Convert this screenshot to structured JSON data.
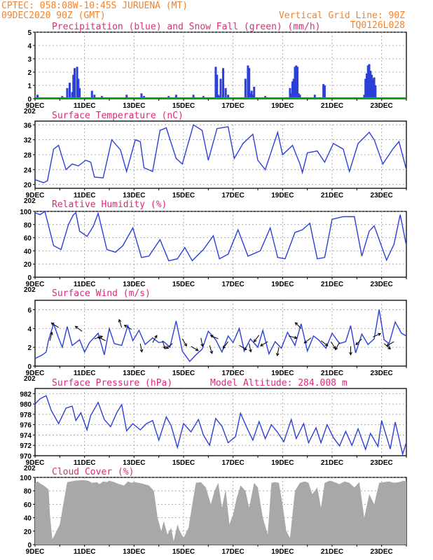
{
  "header": {
    "line1": "CPTEC:   058:08W-10:45S  JURUENA (MT)",
    "line2": "09DEC2020 90Z (GMT)",
    "grid_note": "Vertical Grid Line: 90Z",
    "code": "TQ0126L028"
  },
  "x_axis": {
    "start": "9DEC",
    "end": "24DEC",
    "tick_labels": [
      "9DEC",
      "11DEC",
      "13DEC",
      "15DEC",
      "17DEC",
      "19DEC",
      "21DEC",
      "23DEC"
    ],
    "tick_days": [
      0,
      2,
      4,
      6,
      8,
      10,
      12,
      14
    ],
    "corner_label": "202"
  },
  "colors": {
    "line": "#2b3fd9",
    "precip": "#2b3fd9",
    "snow": "#16a316",
    "cloud": "#a8a8a8",
    "header": "#f5822a",
    "title": "#e0287a"
  },
  "chart_data": [
    {
      "type": "bar",
      "id": "precip",
      "title": "Precipitation (blue) and Snow Fall (green) (mm/h)",
      "ylim": [
        0,
        5
      ],
      "yticks": [
        0,
        1,
        2,
        3,
        4,
        5
      ],
      "series": [
        {
          "name": "Precipitation",
          "x": [
            0.1,
            1.1,
            1.3,
            1.4,
            1.5,
            1.55,
            1.6,
            1.7,
            1.75,
            1.8,
            2.3,
            2.4,
            2.7,
            3.7,
            4.3,
            4.4,
            5.4,
            5.7,
            6.4,
            6.8,
            7.3,
            7.35,
            7.4,
            7.45,
            7.5,
            7.6,
            7.7,
            7.8,
            8.5,
            8.6,
            8.65,
            8.7,
            8.75,
            8.8,
            8.85,
            9.3,
            10.3,
            10.35,
            10.4,
            10.45,
            10.5,
            10.55,
            10.6,
            10.65,
            10.7,
            11.3,
            11.65,
            11.7,
            13.3,
            13.35,
            13.4,
            13.45,
            13.5,
            13.55,
            13.6,
            13.65,
            13.7,
            13.75
          ],
          "values": [
            0.3,
            0.2,
            0.8,
            1.2,
            0.5,
            1.8,
            2.3,
            2.4,
            1.5,
            0.8,
            0.6,
            0.3,
            0.2,
            0.3,
            0.4,
            0.2,
            0.2,
            0.3,
            0.3,
            0.2,
            2.4,
            1.8,
            0.3,
            0.2,
            1.5,
            2.3,
            0.8,
            0.3,
            1.5,
            2.5,
            2.3,
            0.4,
            0.6,
            0.3,
            0.9,
            0.2,
            0.8,
            0.4,
            1.3,
            1.5,
            2.4,
            2.5,
            2.4,
            0.4,
            0.3,
            0.3,
            1.1,
            1.0,
            0.3,
            1.5,
            1.9,
            2.5,
            2.6,
            2.1,
            1.8,
            1.5,
            1.6,
            1.0
          ]
        },
        {
          "name": "Snow Fall",
          "x": [
            0,
            15
          ],
          "values": [
            0.05,
            0.05
          ]
        }
      ]
    },
    {
      "type": "line",
      "id": "temp",
      "title": "Surface Temperature (nC)",
      "ylim": [
        19,
        37
      ],
      "yticks": [
        20,
        24,
        28,
        32,
        36
      ],
      "series": [
        {
          "x": [
            0,
            0.35,
            0.5,
            0.75,
            0.95,
            1.25,
            1.5,
            1.75,
            2.05,
            2.25,
            2.4,
            2.75,
            3.1,
            3.45,
            3.7,
            4.05,
            4.25,
            4.4,
            4.75,
            5.05,
            5.3,
            5.7,
            5.95,
            6.4,
            6.75,
            7.0,
            7.35,
            7.8,
            8.05,
            8.4,
            8.8,
            9.0,
            9.3,
            9.8,
            10.0,
            10.4,
            10.7,
            10.8,
            11.0,
            11.4,
            11.7,
            12.05,
            12.45,
            12.7,
            13.05,
            13.5,
            13.7,
            14.05,
            14.45,
            14.7,
            15.0
          ],
          "values": [
            21.3,
            20.5,
            21.0,
            29.5,
            30.5,
            24.0,
            25.5,
            25.0,
            26.5,
            26.0,
            22.0,
            21.8,
            32.0,
            29.3,
            23.5,
            32.0,
            31.5,
            24.5,
            23.5,
            34.5,
            35.2,
            27.0,
            25.5,
            36.0,
            34.5,
            26.5,
            35.0,
            35.5,
            27.0,
            31.0,
            33.5,
            26.5,
            24.0,
            34.0,
            28.0,
            30.5,
            25.5,
            23.2,
            28.5,
            29.0,
            26.0,
            31.0,
            29.5,
            23.5,
            31.0,
            34.0,
            32.0,
            25.5,
            29.5,
            31.5,
            24.0
          ]
        }
      ]
    },
    {
      "type": "line",
      "id": "humidity",
      "title": "Relative Humidity (%)",
      "ylim": [
        0,
        100
      ],
      "yticks": [
        0,
        20,
        40,
        60,
        80,
        100
      ],
      "series": [
        {
          "x": [
            0,
            0.2,
            0.4,
            0.75,
            1.05,
            1.35,
            1.55,
            1.65,
            1.8,
            2.1,
            2.35,
            2.55,
            2.9,
            3.25,
            3.55,
            3.95,
            4.3,
            4.6,
            5.05,
            5.4,
            5.75,
            6.05,
            6.35,
            6.8,
            7.2,
            7.45,
            7.8,
            8.2,
            8.6,
            9.1,
            9.5,
            9.8,
            10.1,
            10.5,
            10.8,
            11.1,
            11.4,
            11.7,
            12.0,
            12.45,
            12.9,
            13.2,
            13.5,
            13.7,
            14.2,
            14.5,
            14.75,
            15.0
          ],
          "values": [
            98.0,
            95.0,
            100.0,
            48.0,
            42.0,
            80.0,
            95.0,
            98.0,
            70.0,
            62.0,
            77.0,
            97.0,
            42.0,
            38.0,
            48.0,
            75.0,
            30.0,
            32.0,
            57.0,
            25.0,
            28.0,
            45.0,
            25.0,
            42.0,
            63.0,
            28.0,
            35.0,
            72.0,
            32.0,
            40.0,
            75.0,
            30.0,
            28.0,
            68.0,
            72.0,
            82.0,
            28.0,
            30.0,
            88.0,
            92.0,
            92.0,
            32.0,
            70.0,
            78.0,
            26.0,
            50.0,
            95.0,
            48.0
          ]
        }
      ]
    },
    {
      "type": "line",
      "id": "wind",
      "title": "Surface Wind (m/s)",
      "ylim": [
        0,
        7
      ],
      "yticks": [
        0,
        2,
        4,
        6
      ],
      "series": [
        {
          "x": [
            0,
            0.3,
            0.45,
            0.55,
            0.75,
            0.95,
            1.1,
            1.3,
            1.5,
            1.8,
            2.0,
            2.2,
            2.55,
            2.8,
            3.0,
            3.2,
            3.5,
            3.75,
            3.95,
            4.2,
            4.45,
            4.75,
            5.0,
            5.2,
            5.45,
            5.7,
            5.95,
            6.25,
            6.5,
            6.75,
            7.0,
            7.3,
            7.55,
            7.8,
            8.0,
            8.25,
            8.45,
            8.7,
            9.0,
            9.2,
            9.45,
            9.7,
            9.95,
            10.2,
            10.5,
            10.75,
            11.0,
            11.25,
            11.45,
            11.75,
            12.0,
            12.3,
            12.55,
            12.75,
            12.95,
            13.2,
            13.45,
            13.7,
            13.9,
            14.1,
            14.3,
            14.55,
            14.8,
            15.0
          ],
          "values": [
            0.8,
            1.2,
            1.5,
            2.8,
            4.5,
            3.0,
            2.0,
            4.2,
            2.2,
            2.8,
            1.5,
            2.5,
            3.5,
            1.2,
            4.0,
            2.4,
            2.2,
            4.3,
            2.7,
            3.8,
            2.3,
            3.0,
            2.5,
            2.6,
            2.0,
            4.8,
            1.6,
            0.5,
            1.2,
            1.8,
            3.7,
            2.8,
            1.5,
            3.2,
            2.5,
            4.0,
            1.6,
            2.9,
            2.0,
            3.8,
            1.3,
            2.6,
            1.9,
            3.6,
            2.2,
            4.5,
            1.6,
            3.2,
            2.8,
            1.9,
            3.5,
            2.4,
            2.6,
            4.3,
            1.4,
            3.4,
            2.3,
            2.9,
            6.0,
            2.8,
            2.4,
            4.7,
            3.5,
            3.2
          ]
        }
      ],
      "vectors": [
        {
          "x": 0.6,
          "speed": 2.7,
          "dx": 0.25,
          "dy": -1.0
        },
        {
          "x": 0.95,
          "speed": 4.1,
          "dx": -0.85,
          "dy": -0.55
        },
        {
          "x": 1.9,
          "speed": 3.7,
          "dx": -0.8,
          "dy": -0.6
        },
        {
          "x": 2.4,
          "speed": 2.9,
          "dx": 0.95,
          "dy": -0.3
        },
        {
          "x": 2.85,
          "speed": 2.7,
          "dx": -0.9,
          "dy": -0.45
        },
        {
          "x": 3.5,
          "speed": 4.1,
          "dx": -0.3,
          "dy": -0.95
        },
        {
          "x": 3.9,
          "speed": 3.9,
          "dx": -0.85,
          "dy": -0.5
        },
        {
          "x": 4.25,
          "speed": 2.4,
          "dx": 0.2,
          "dy": 1.0
        },
        {
          "x": 4.75,
          "speed": 2.5,
          "dx": 0.5,
          "dy": -0.85
        },
        {
          "x": 5.15,
          "speed": 2.7,
          "dx": 0.3,
          "dy": 0.95
        },
        {
          "x": 5.55,
          "speed": 2.4,
          "dx": -0.75,
          "dy": 0.6
        },
        {
          "x": 5.95,
          "speed": 2.9,
          "dx": 0.5,
          "dy": 0.85
        },
        {
          "x": 6.3,
          "speed": 2.1,
          "dx": 0.85,
          "dy": 0.5
        },
        {
          "x": 6.7,
          "speed": 3.0,
          "dx": 0.2,
          "dy": 1.0
        },
        {
          "x": 7.05,
          "speed": 2.2,
          "dx": 0.3,
          "dy": 0.95
        },
        {
          "x": 7.4,
          "speed": 2.9,
          "dx": -0.9,
          "dy": -0.4
        },
        {
          "x": 7.8,
          "speed": 2.6,
          "dx": -0.6,
          "dy": 0.8
        },
        {
          "x": 8.25,
          "speed": 2.2,
          "dx": 0.85,
          "dy": 0.5
        },
        {
          "x": 8.65,
          "speed": 2.4,
          "dx": 0.2,
          "dy": 1.0
        },
        {
          "x": 9.05,
          "speed": 3.3,
          "dx": -0.6,
          "dy": 0.8
        },
        {
          "x": 9.4,
          "speed": 2.6,
          "dx": -0.85,
          "dy": 0.5
        },
        {
          "x": 9.85,
          "speed": 2.0,
          "dx": -0.2,
          "dy": 1.0
        },
        {
          "x": 10.25,
          "speed": 3.2,
          "dx": 0.95,
          "dy": 0.25
        },
        {
          "x": 10.75,
          "speed": 4.0,
          "dx": -0.7,
          "dy": -0.7
        },
        {
          "x": 11.15,
          "speed": 3.0,
          "dx": -0.8,
          "dy": 0.6
        },
        {
          "x": 11.55,
          "speed": 2.7,
          "dx": 0.8,
          "dy": 0.6
        },
        {
          "x": 11.95,
          "speed": 2.6,
          "dx": 0.55,
          "dy": 0.85
        },
        {
          "x": 12.3,
          "speed": 2.5,
          "dx": -0.5,
          "dy": 0.85
        },
        {
          "x": 12.75,
          "speed": 2.1,
          "dx": 0.0,
          "dy": 1.0
        },
        {
          "x": 13.2,
          "speed": 2.9,
          "dx": -0.7,
          "dy": 0.7
        },
        {
          "x": 13.65,
          "speed": 3.1,
          "dx": 0.9,
          "dy": -0.4
        },
        {
          "x": 14.1,
          "speed": 2.4,
          "dx": 0.75,
          "dy": 0.65
        },
        {
          "x": 14.5,
          "speed": 2.6,
          "dx": -0.85,
          "dy": 0.5
        }
      ]
    },
    {
      "type": "line",
      "id": "pressure",
      "title": "Surface Pressure (hPa)",
      "subtitle": "Model Altitude: 284.008 m",
      "ylim": [
        970,
        983
      ],
      "yticks": [
        970,
        972,
        974,
        976,
        978,
        980,
        982
      ],
      "series": [
        {
          "x": [
            0,
            0.2,
            0.45,
            0.65,
            0.95,
            1.25,
            1.5,
            1.65,
            1.85,
            2.1,
            2.25,
            2.55,
            2.8,
            3.05,
            3.3,
            3.5,
            3.7,
            3.95,
            4.25,
            4.5,
            4.75,
            5.0,
            5.3,
            5.5,
            5.75,
            6.0,
            6.3,
            6.6,
            6.8,
            7.05,
            7.3,
            7.55,
            7.8,
            8.1,
            8.3,
            8.55,
            8.8,
            9.05,
            9.3,
            9.55,
            9.8,
            10.05,
            10.35,
            10.55,
            10.85,
            11.05,
            11.35,
            11.55,
            11.8,
            12.05,
            12.3,
            12.55,
            12.8,
            13.05,
            13.35,
            13.55,
            13.85,
            14.0,
            14.35,
            14.55,
            14.85,
            15.0
          ],
          "values": [
            980.0,
            981.0,
            981.6,
            978.8,
            976.2,
            979.2,
            979.6,
            976.8,
            978.3,
            975.0,
            977.8,
            980.3,
            977.0,
            975.6,
            978.3,
            979.9,
            974.8,
            976.2,
            975.0,
            976.2,
            976.8,
            973.0,
            977.5,
            975.8,
            971.6,
            976.2,
            974.6,
            977.0,
            974.0,
            972.0,
            977.2,
            975.7,
            972.5,
            973.7,
            978.2,
            975.5,
            973.0,
            976.6,
            973.3,
            976.0,
            974.5,
            972.7,
            977.0,
            973.3,
            976.2,
            972.5,
            975.4,
            972.5,
            976.0,
            973.5,
            971.9,
            974.7,
            972.0,
            975.2,
            971.2,
            974.3,
            971.8,
            976.8,
            971.3,
            976.5,
            970.3,
            972.6
          ]
        }
      ]
    },
    {
      "type": "area",
      "id": "cloud",
      "title": "Cloud Cover (%)",
      "ylim": [
        0,
        100
      ],
      "yticks": [
        0,
        20,
        40,
        60,
        80,
        100
      ],
      "series": [
        {
          "x": [
            0,
            0.1,
            0.25,
            0.35,
            0.45,
            0.55,
            0.6,
            0.7,
            0.8,
            1.0,
            1.3,
            1.6,
            1.9,
            2.15,
            2.3,
            2.5,
            2.6,
            2.75,
            2.9,
            3.0,
            3.2,
            3.4,
            3.6,
            3.75,
            3.9,
            4.0,
            4.2,
            4.4,
            4.6,
            4.8,
            4.95,
            5.1,
            5.2,
            5.35,
            5.5,
            5.6,
            5.75,
            5.85,
            6.0,
            6.2,
            6.35,
            6.5,
            6.7,
            6.9,
            7.1,
            7.25,
            7.4,
            7.55,
            7.7,
            7.85,
            8.0,
            8.15,
            8.3,
            8.5,
            8.65,
            8.85,
            9.0,
            9.2,
            9.4,
            9.55,
            9.7,
            9.85,
            10.0,
            10.15,
            10.3,
            10.5,
            10.7,
            10.9,
            11.05,
            11.2,
            11.4,
            11.55,
            11.7,
            11.9,
            12.1,
            12.3,
            12.5,
            12.7,
            12.9,
            13.1,
            13.3,
            13.5,
            13.7,
            13.9,
            14.1,
            14.3,
            14.5,
            14.7,
            14.9,
            15.0
          ],
          "values": [
            92,
            94,
            90,
            88,
            85,
            82,
            45,
            8,
            15,
            30,
            93,
            95,
            96,
            95,
            92,
            93,
            90,
            94,
            93,
            95,
            93,
            90,
            88,
            94,
            92,
            93,
            92,
            90,
            88,
            80,
            40,
            20,
            35,
            15,
            25,
            5,
            30,
            20,
            10,
            25,
            60,
            92,
            93,
            85,
            60,
            80,
            92,
            55,
            82,
            30,
            45,
            70,
            88,
            80,
            55,
            92,
            85,
            40,
            15,
            92,
            93,
            92,
            60,
            20,
            10,
            80,
            92,
            94,
            92,
            75,
            85,
            55,
            92,
            95,
            93,
            90,
            94,
            92,
            85,
            93,
            40,
            75,
            60,
            92,
            93,
            94,
            92,
            93,
            95,
            94
          ]
        }
      ]
    }
  ]
}
